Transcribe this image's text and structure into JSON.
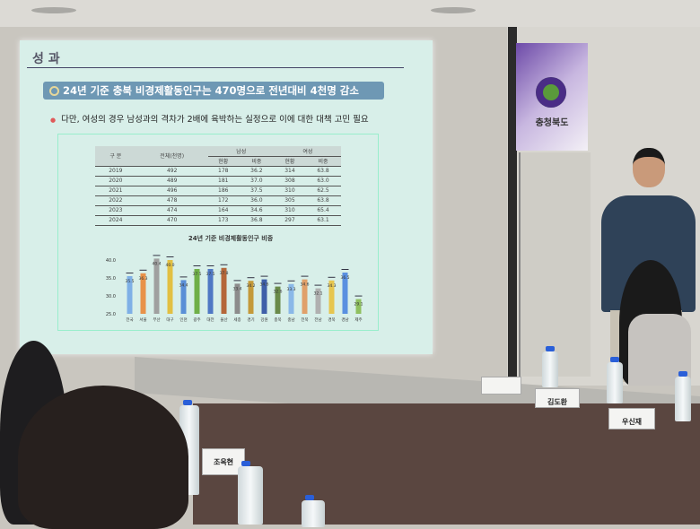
{
  "slide": {
    "title": "성 과",
    "headline": "24년 기준 충북 비경제활동인구는 470명으로 전년대비 4천명 감소",
    "bullet": "다만, 여성의 경우 남성과의 격차가 2배에 육박하는 실정으로 이에 대한 대책 고민 필요",
    "table": {
      "headers": [
        "구 분",
        "전체(천명)",
        "남성",
        "여성"
      ],
      "subheaders": [
        "현황",
        "비중",
        "현황",
        "비중"
      ],
      "rows": [
        [
          "2019",
          "492",
          "178",
          "36.2",
          "314",
          "63.8"
        ],
        [
          "2020",
          "489",
          "181",
          "37.0",
          "308",
          "63.0"
        ],
        [
          "2021",
          "496",
          "186",
          "37.5",
          "310",
          "62.5"
        ],
        [
          "2022",
          "478",
          "172",
          "36.0",
          "305",
          "63.8"
        ],
        [
          "2023",
          "474",
          "164",
          "34.6",
          "310",
          "65.4"
        ],
        [
          "2024",
          "470",
          "173",
          "36.8",
          "297",
          "63.1"
        ]
      ]
    }
  },
  "chart_data": {
    "type": "bar",
    "title": "24년 기준 비경제활동인구 비중",
    "categories": [
      "전국",
      "서울",
      "부산",
      "대구",
      "인천",
      "광주",
      "대전",
      "울산",
      "세종",
      "경기",
      "강원",
      "충북",
      "충남",
      "전북",
      "전남",
      "경북",
      "경남",
      "제주"
    ],
    "values": [
      35.5,
      36.3,
      40.4,
      40.0,
      34.4,
      37.5,
      37.5,
      37.8,
      33.4,
      34.2,
      34.6,
      32.6,
      33.3,
      34.6,
      32.1,
      34.3,
      36.5,
      29.1
    ],
    "yticks": [
      "25.0",
      "30.0",
      "35.0",
      "40.0"
    ],
    "ylim": [
      25,
      40
    ],
    "colors": [
      "#7fb0e6",
      "#e8924a",
      "#a0a0a0",
      "#e2c043",
      "#5a8fd6",
      "#6faf48",
      "#4f78c4",
      "#b4673a",
      "#8c8c8c",
      "#c49a3a",
      "#3f5fa8",
      "#6a8a4a",
      "#8ab8e8",
      "#e0a06a",
      "#b0b0b0",
      "#e6c650",
      "#5a90e0",
      "#8fc060"
    ]
  },
  "banner": {
    "name": "충청북도"
  },
  "name_plates": [
    "김도환",
    "우신재",
    "조옥현"
  ]
}
